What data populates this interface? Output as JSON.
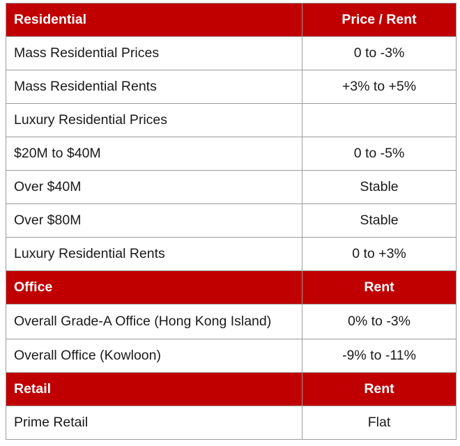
{
  "sections": [
    {
      "header": {
        "label": "Residential",
        "value": "Price / Rent"
      },
      "rows": [
        {
          "label": "Mass Residential Prices",
          "value": "0 to -3%"
        },
        {
          "label": "Mass Residential Rents",
          "value": "+3% to +5%"
        },
        {
          "label": "Luxury Residential Prices",
          "value": ""
        },
        {
          "label": "$20M to $40M",
          "value": "0 to -5%"
        },
        {
          "label": "Over $40M",
          "value": "Stable"
        },
        {
          "label": "Over $80M",
          "value": "Stable"
        },
        {
          "label": "Luxury Residential Rents",
          "value": "0 to +3%"
        }
      ]
    },
    {
      "header": {
        "label": "Office",
        "value": "Rent"
      },
      "rows": [
        {
          "label": "Overall Grade-A Office (Hong Kong Island)",
          "value": "0% to -3%"
        },
        {
          "label": "Overall Office (Kowloon)",
          "value": "-9% to -11%"
        }
      ]
    },
    {
      "header": {
        "label": "Retail",
        "value": "Rent"
      },
      "rows": [
        {
          "label": "Prime Retail",
          "value": "Flat"
        }
      ]
    }
  ],
  "colors": {
    "header_bg": "#c00000",
    "header_text": "#ffffff",
    "border": "#9a9a9a"
  }
}
